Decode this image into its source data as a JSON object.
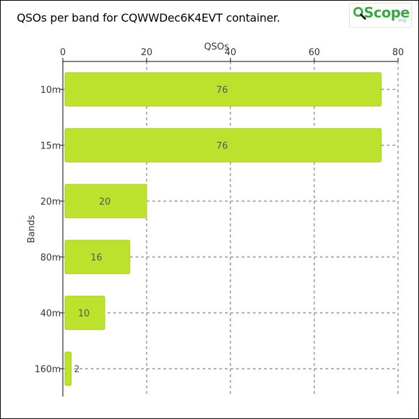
{
  "title": "QSOs per band for CQWWDec6K4EVT container.",
  "logo": {
    "text": "Scope",
    "suffix": ".org"
  },
  "colors": {
    "bar_fill": "#bde22e",
    "bar_stroke": "#a8cc2a",
    "logo_green": "#39a845",
    "grid": "#666666"
  },
  "chart_data": {
    "type": "bar",
    "orientation": "horizontal",
    "categories": [
      "10m",
      "15m",
      "20m",
      "80m",
      "40m",
      "160m"
    ],
    "values": [
      76,
      76,
      20,
      16,
      10,
      2
    ],
    "xlabel": "QSOs",
    "ylabel": "Bands",
    "xlim": [
      0,
      80
    ],
    "xticks": [
      0,
      20,
      40,
      60,
      80
    ],
    "x_axis_position": "top",
    "grid": true,
    "legend": "none"
  }
}
